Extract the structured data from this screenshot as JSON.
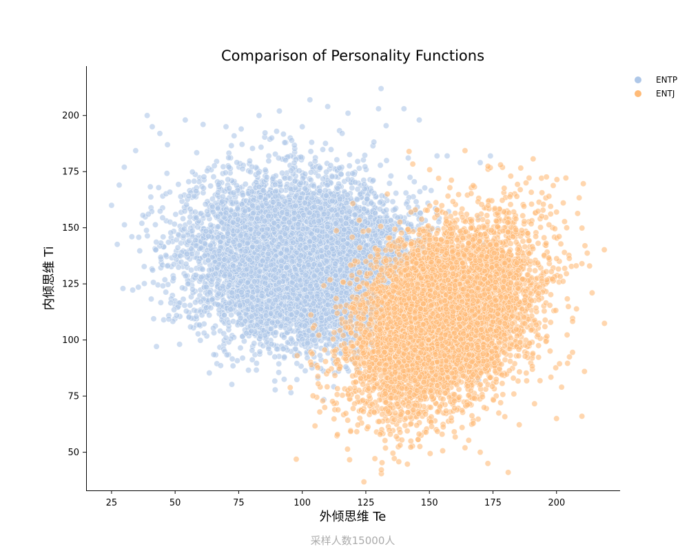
{
  "chart_data": {
    "type": "scatter",
    "title": "Comparison of Personality Functions",
    "xlabel": "外倾思维 Te",
    "ylabel": "内倾思维 Ti",
    "footnote": "采样人数15000人",
    "xlim": [
      15,
      225
    ],
    "ylim": [
      33,
      222
    ],
    "xticks": [
      25,
      50,
      75,
      100,
      125,
      150,
      175,
      200
    ],
    "yticks": [
      50,
      75,
      100,
      125,
      150,
      175,
      200
    ],
    "grid": false,
    "legend_position": "top-right outside",
    "series": [
      {
        "name": "ENTP",
        "color": "#aec7e8",
        "center": [
          100,
          135
        ],
        "spread": [
          22,
          18
        ],
        "correlation": -0.1,
        "count": 7500,
        "points": [
          [
            25,
            160
          ],
          [
            28,
            169
          ],
          [
            30,
            177
          ],
          [
            33,
            146
          ],
          [
            39,
            200
          ],
          [
            41,
            195
          ],
          [
            44,
            192
          ],
          [
            47,
            187
          ],
          [
            54,
            198
          ],
          [
            61,
            196
          ],
          [
            70,
            195
          ],
          [
            76,
            194
          ],
          [
            83,
            200
          ],
          [
            88,
            190
          ],
          [
            91,
            202
          ],
          [
            100,
            195
          ],
          [
            103,
            207
          ],
          [
            110,
            204
          ],
          [
            118,
            201
          ],
          [
            130,
            203
          ],
          [
            131,
            212
          ],
          [
            140,
            203
          ],
          [
            146,
            198
          ],
          [
            153,
            182
          ],
          [
            157,
            182
          ],
          [
            174,
            182
          ],
          [
            170,
            179
          ],
          [
            47,
            133
          ],
          [
            55,
            125
          ],
          [
            60,
            117
          ],
          [
            70,
            101
          ],
          [
            78,
            103
          ],
          [
            86,
            99
          ],
          [
            90,
            96
          ],
          [
            97,
            93
          ]
        ]
      },
      {
        "name": "ENTJ",
        "color": "#ffbb78",
        "center": [
          155,
          110
        ],
        "spread": [
          17,
          20
        ],
        "correlation": 0.35,
        "count": 7500,
        "points": [
          [
            98,
            93
          ],
          [
            137,
            57
          ],
          [
            145,
            62
          ],
          [
            155,
            58
          ],
          [
            164,
            52
          ],
          [
            170,
            50
          ],
          [
            173,
            45
          ],
          [
            181,
            41
          ],
          [
            142,
            184
          ],
          [
            178,
            178
          ],
          [
            182,
            173
          ],
          [
            188,
            170
          ],
          [
            197,
            164
          ],
          [
            200,
            157
          ],
          [
            204,
            150
          ],
          [
            210,
            134
          ],
          [
            213,
            133
          ],
          [
            214,
            121
          ],
          [
            211,
            86
          ],
          [
            210,
            66
          ],
          [
            200,
            65
          ],
          [
            202,
            79
          ]
        ]
      }
    ]
  }
}
